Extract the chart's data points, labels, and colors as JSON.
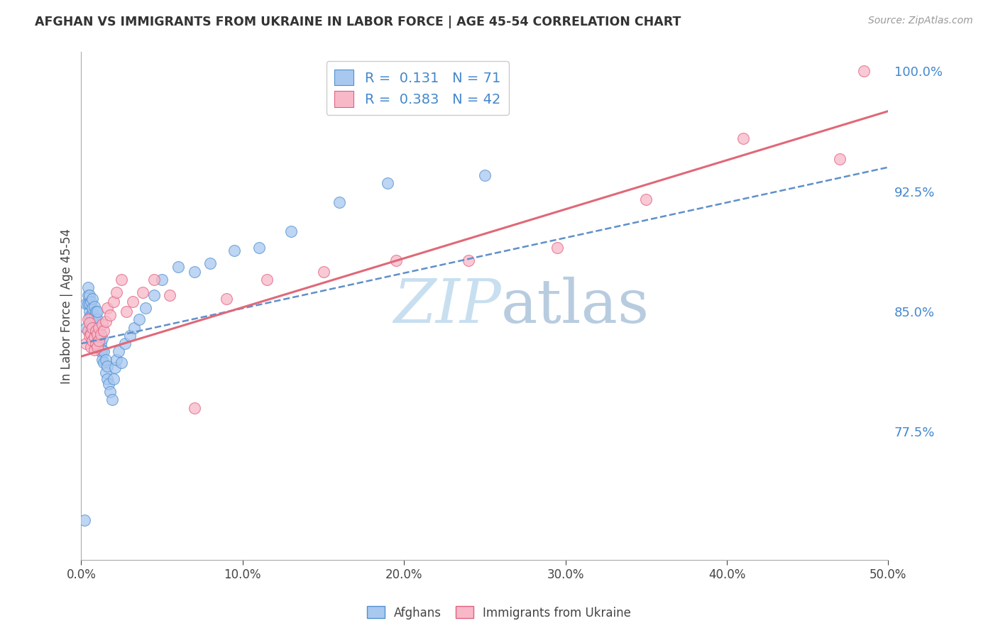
{
  "title": "AFGHAN VS IMMIGRANTS FROM UKRAINE IN LABOR FORCE | AGE 45-54 CORRELATION CHART",
  "source": "Source: ZipAtlas.com",
  "ylabel": "In Labor Force | Age 45-54",
  "xlim": [
    0.0,
    0.5
  ],
  "ylim": [
    0.695,
    1.012
  ],
  "xticks": [
    0.0,
    0.1,
    0.2,
    0.3,
    0.4,
    0.5
  ],
  "xticklabels": [
    "0.0%",
    "10.0%",
    "20.0%",
    "30.0%",
    "40.0%",
    "50.0%"
  ],
  "yticks": [
    0.775,
    0.85,
    0.925,
    1.0
  ],
  "yticklabels": [
    "77.5%",
    "85.0%",
    "92.5%",
    "100.0%"
  ],
  "blue_fill": "#A8C8F0",
  "blue_edge": "#5090D0",
  "pink_fill": "#F8B8C8",
  "pink_edge": "#E06080",
  "blue_line": "#6090C8",
  "pink_line": "#E06878",
  "grid_color": "#DDDDEE",
  "watermark_color": "#C8DFF0",
  "afghans_x": [
    0.002,
    0.003,
    0.003,
    0.004,
    0.004,
    0.004,
    0.005,
    0.005,
    0.005,
    0.005,
    0.006,
    0.006,
    0.006,
    0.006,
    0.007,
    0.007,
    0.007,
    0.007,
    0.007,
    0.008,
    0.008,
    0.008,
    0.008,
    0.009,
    0.009,
    0.009,
    0.009,
    0.01,
    0.01,
    0.01,
    0.01,
    0.01,
    0.011,
    0.011,
    0.011,
    0.012,
    0.012,
    0.012,
    0.013,
    0.013,
    0.013,
    0.014,
    0.014,
    0.015,
    0.015,
    0.016,
    0.016,
    0.017,
    0.018,
    0.019,
    0.02,
    0.021,
    0.022,
    0.023,
    0.025,
    0.027,
    0.03,
    0.033,
    0.036,
    0.04,
    0.045,
    0.05,
    0.06,
    0.07,
    0.08,
    0.095,
    0.11,
    0.13,
    0.16,
    0.19,
    0.25
  ],
  "afghans_y": [
    0.72,
    0.84,
    0.855,
    0.855,
    0.86,
    0.865,
    0.847,
    0.85,
    0.855,
    0.86,
    0.838,
    0.842,
    0.848,
    0.856,
    0.84,
    0.843,
    0.848,
    0.852,
    0.858,
    0.838,
    0.843,
    0.847,
    0.853,
    0.836,
    0.84,
    0.845,
    0.85,
    0.832,
    0.835,
    0.84,
    0.845,
    0.85,
    0.828,
    0.833,
    0.838,
    0.825,
    0.83,
    0.836,
    0.82,
    0.826,
    0.833,
    0.818,
    0.825,
    0.812,
    0.82,
    0.808,
    0.816,
    0.805,
    0.8,
    0.795,
    0.808,
    0.815,
    0.82,
    0.825,
    0.818,
    0.83,
    0.835,
    0.84,
    0.845,
    0.852,
    0.86,
    0.87,
    0.878,
    0.875,
    0.88,
    0.888,
    0.89,
    0.9,
    0.918,
    0.93,
    0.935
  ],
  "ukraine_x": [
    0.003,
    0.004,
    0.004,
    0.005,
    0.005,
    0.006,
    0.006,
    0.007,
    0.007,
    0.008,
    0.008,
    0.009,
    0.009,
    0.01,
    0.01,
    0.011,
    0.011,
    0.012,
    0.013,
    0.014,
    0.015,
    0.016,
    0.018,
    0.02,
    0.022,
    0.025,
    0.028,
    0.032,
    0.038,
    0.045,
    0.055,
    0.07,
    0.09,
    0.115,
    0.15,
    0.195,
    0.24,
    0.295,
    0.35,
    0.41,
    0.47,
    0.485
  ],
  "ukraine_y": [
    0.83,
    0.838,
    0.845,
    0.835,
    0.843,
    0.828,
    0.836,
    0.832,
    0.84,
    0.826,
    0.834,
    0.83,
    0.838,
    0.828,
    0.836,
    0.832,
    0.84,
    0.836,
    0.842,
    0.838,
    0.844,
    0.852,
    0.848,
    0.856,
    0.862,
    0.87,
    0.85,
    0.856,
    0.862,
    0.87,
    0.86,
    0.79,
    0.858,
    0.87,
    0.875,
    0.882,
    0.882,
    0.89,
    0.92,
    0.958,
    0.945,
    1.0
  ],
  "afghan_trend_x": [
    0.0,
    0.5
  ],
  "afghan_trend_y": [
    0.83,
    0.94
  ],
  "ukraine_trend_x": [
    0.0,
    0.5
  ],
  "ukraine_trend_y": [
    0.822,
    0.975
  ],
  "title_fontsize": 12.5,
  "label_fontsize": 12,
  "tick_fontsize": 12,
  "legend_fontsize": 14
}
